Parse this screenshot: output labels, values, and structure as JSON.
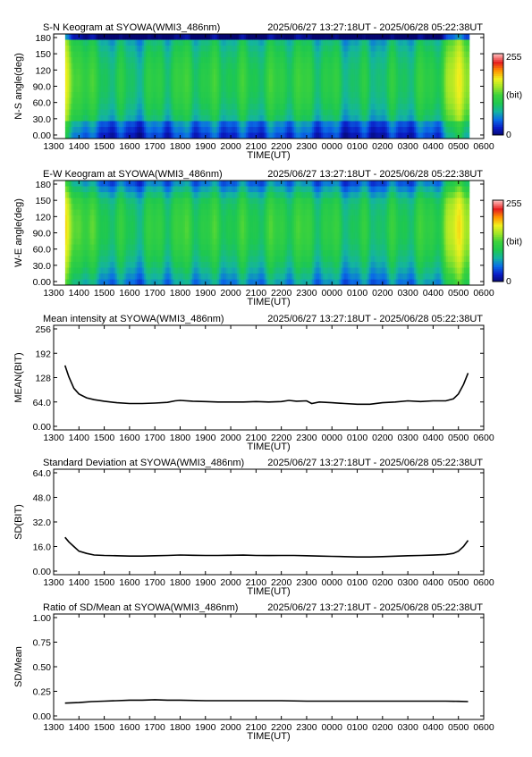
{
  "colors": {
    "background": "#ffffff",
    "line": "#000000",
    "keogram_palette": [
      "#05056e",
      "#0a1ec8",
      "#0a6ee6",
      "#14b4a0",
      "#1ec850",
      "#3cd23c",
      "#a0e628",
      "#f0f01e",
      "#ff9600",
      "#e61e1e",
      "#ffb4b4"
    ]
  },
  "time_ticks": [
    "1300",
    "1400",
    "1500",
    "1600",
    "1700",
    "1800",
    "1900",
    "2000",
    "2100",
    "2200",
    "2300",
    "0000",
    "0100",
    "0200",
    "0300",
    "0400",
    "0500",
    "0600"
  ],
  "chart_data": [
    {
      "type": "heatmap",
      "title": "S-N Keogram at SYOWA(WMI3_486nm)",
      "time_range": "2025/06/27 13:27:18UT - 2025/06/28 05:22:38UT",
      "xlabel": "TIME(UT)",
      "ylabel": "N-S angle(deg)",
      "ylim": [
        0,
        180
      ],
      "yticks": [
        "180",
        "150",
        "120",
        "90.0",
        "60.0",
        "30.0",
        "0.00"
      ],
      "colorbar": {
        "max": "255",
        "unit": "(bit)",
        "min": "0"
      },
      "data_x_range": [
        13.455,
        29.377
      ],
      "band_profile": {
        "x": [
          13.5,
          14.5,
          16.0,
          17.8,
          19.5,
          21.0,
          22.3,
          23.5,
          25.0,
          26.5,
          28.0,
          29.0
        ],
        "level": [
          160,
          110,
          95,
          115,
          110,
          108,
          118,
          110,
          95,
          100,
          112,
          170
        ]
      }
    },
    {
      "type": "heatmap",
      "title": "E-W Keogram at SYOWA(WMI3_486nm)",
      "time_range": "2025/06/27 13:27:18UT - 2025/06/28 05:22:38UT",
      "xlabel": "TIME(UT)",
      "ylabel": "W-E angle(deg)",
      "ylim": [
        0,
        180
      ],
      "yticks": [
        "180",
        "150",
        "120",
        "90.0",
        "60.0",
        "30.0",
        "0.00"
      ],
      "colorbar": {
        "max": "255",
        "unit": "(bit)",
        "min": "0"
      },
      "data_x_range": [
        13.455,
        29.377
      ],
      "band_profile": {
        "x": [
          13.5,
          14.5,
          16.0,
          17.8,
          19.5,
          21.0,
          22.3,
          23.5,
          25.0,
          26.5,
          28.0,
          29.0
        ],
        "level": [
          165,
          115,
          100,
          118,
          112,
          110,
          120,
          112,
          100,
          105,
          115,
          175
        ]
      }
    },
    {
      "type": "line",
      "title": "Mean intensity at SYOWA(WMI3_486nm)",
      "time_range": "2025/06/27 13:27:18UT - 2025/06/28 05:22:38UT",
      "xlabel": "TIME(UT)",
      "ylabel": "MEAN(BIT)",
      "ylim": [
        0,
        256
      ],
      "yticks": [
        {
          "v": 256,
          "label": "256"
        },
        {
          "v": 192,
          "label": "192"
        },
        {
          "v": 128,
          "label": "128"
        },
        {
          "v": 64,
          "label": "64.0"
        },
        {
          "v": 0,
          "label": "0.00"
        }
      ],
      "series": [
        {
          "x": [
            13.45,
            13.6,
            13.8,
            14.0,
            14.3,
            14.6,
            15.0,
            15.5,
            16.0,
            16.5,
            17.0,
            17.5,
            17.8,
            18.0,
            18.5,
            19.0,
            19.5,
            20.0,
            20.5,
            21.0,
            21.5,
            22.0,
            22.3,
            22.6,
            23.0,
            23.2,
            23.5,
            24.0,
            24.5,
            25.0,
            25.5,
            26.0,
            26.5,
            27.0,
            27.5,
            28.0,
            28.5,
            28.8,
            29.0,
            29.2,
            29.38
          ],
          "y": [
            160,
            130,
            100,
            85,
            75,
            70,
            66,
            62,
            60,
            60,
            61,
            63,
            67,
            68,
            66,
            65,
            64,
            64,
            64,
            65,
            64,
            65,
            68,
            66,
            67,
            60,
            64,
            62,
            60,
            58,
            58,
            62,
            64,
            67,
            65,
            67,
            67,
            72,
            85,
            110,
            140
          ]
        }
      ]
    },
    {
      "type": "line",
      "title": "Standard Deviation at SYOWA(WMI3_486nm)",
      "time_range": "2025/06/27 13:27:18UT - 2025/06/28 05:22:38UT",
      "xlabel": "TIME(UT)",
      "ylabel": "SD(BIT)",
      "ylim": [
        0,
        64
      ],
      "yticks": [
        {
          "v": 64,
          "label": "64.0"
        },
        {
          "v": 48,
          "label": "48.0"
        },
        {
          "v": 32,
          "label": "32.0"
        },
        {
          "v": 16,
          "label": "16.0"
        },
        {
          "v": 0,
          "label": "0.00"
        }
      ],
      "series": [
        {
          "x": [
            13.45,
            13.6,
            13.8,
            14.0,
            14.3,
            14.6,
            15.0,
            15.5,
            16.0,
            16.5,
            17.0,
            17.5,
            18.0,
            18.5,
            19.0,
            19.5,
            20.0,
            20.5,
            21.0,
            21.5,
            22.0,
            22.5,
            23.0,
            23.5,
            24.0,
            24.5,
            25.0,
            25.5,
            26.0,
            26.5,
            27.0,
            27.5,
            28.0,
            28.5,
            28.8,
            29.0,
            29.2,
            29.38
          ],
          "y": [
            22,
            19,
            16,
            13,
            11.5,
            10.5,
            10.2,
            10,
            9.8,
            9.8,
            10,
            10.2,
            10.5,
            10.3,
            10.2,
            10.2,
            10.3,
            10.4,
            10.2,
            10.1,
            10.2,
            10.2,
            10,
            9.8,
            9.6,
            9.4,
            9.2,
            9.2,
            9.4,
            9.7,
            10,
            10.2,
            10.4,
            10.8,
            11.5,
            13,
            16,
            20
          ]
        }
      ]
    },
    {
      "type": "line",
      "title": "Ratio of SD/Mean at SYOWA(WMI3_486nm)",
      "time_range": "2025/06/27 13:27:18UT - 2025/06/28 05:22:38UT",
      "xlabel": "TIME(UT)",
      "ylabel": "SD/Mean",
      "ylim": [
        0,
        1
      ],
      "yticks": [
        {
          "v": 1,
          "label": "1.00"
        },
        {
          "v": 0.75,
          "label": "0.75"
        },
        {
          "v": 0.5,
          "label": "0.50"
        },
        {
          "v": 0.25,
          "label": "0.25"
        },
        {
          "v": 0,
          "label": "0.00"
        }
      ],
      "series": [
        {
          "x": [
            13.45,
            14.0,
            14.5,
            15.0,
            15.5,
            16.0,
            16.5,
            17.0,
            17.5,
            18.0,
            19.0,
            20.0,
            21.0,
            22.0,
            23.0,
            24.0,
            25.0,
            26.0,
            27.0,
            28.0,
            28.5,
            29.0,
            29.38
          ],
          "y": [
            0.13,
            0.135,
            0.145,
            0.15,
            0.155,
            0.16,
            0.16,
            0.165,
            0.16,
            0.16,
            0.155,
            0.155,
            0.155,
            0.155,
            0.15,
            0.15,
            0.15,
            0.15,
            0.15,
            0.15,
            0.15,
            0.148,
            0.145
          ]
        }
      ]
    }
  ]
}
